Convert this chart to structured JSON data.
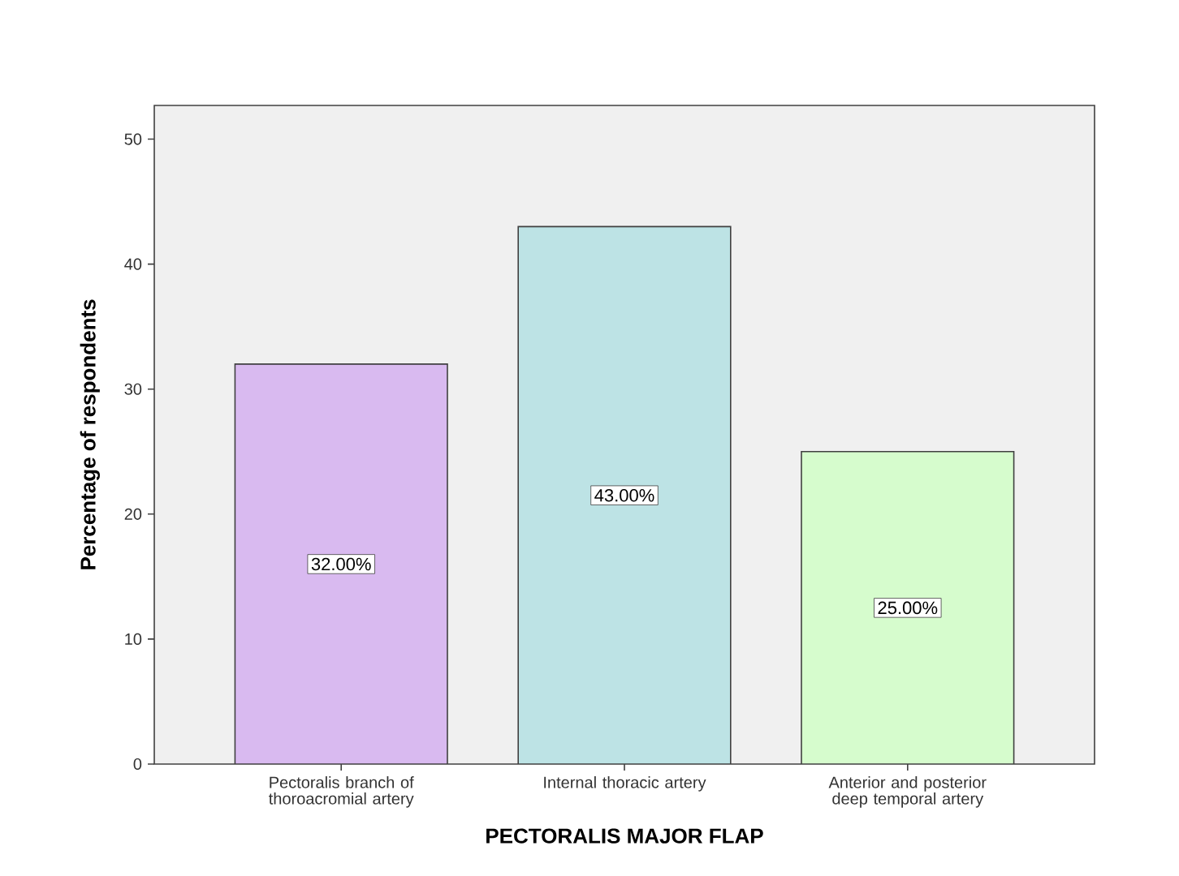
{
  "chart_data": {
    "type": "bar",
    "xlabel": "PECTORALIS MAJOR FLAP",
    "ylabel": "Percentage of respondents",
    "categories": [
      "Pectoralis branch of thoroacromial artery",
      "Internal thoracic artery",
      "Anterior and posterior deep temporal artery"
    ],
    "values": [
      32,
      43,
      25
    ],
    "colors": [
      "#d9baf0",
      "#bde3e5",
      "#d6fccd"
    ],
    "value_labels": [
      "32.00%",
      "43.00%",
      "25.00%"
    ],
    "ylim": [
      0,
      52.7
    ],
    "yticks": [
      0,
      10,
      20,
      30,
      40,
      50
    ],
    "grid": false
  }
}
